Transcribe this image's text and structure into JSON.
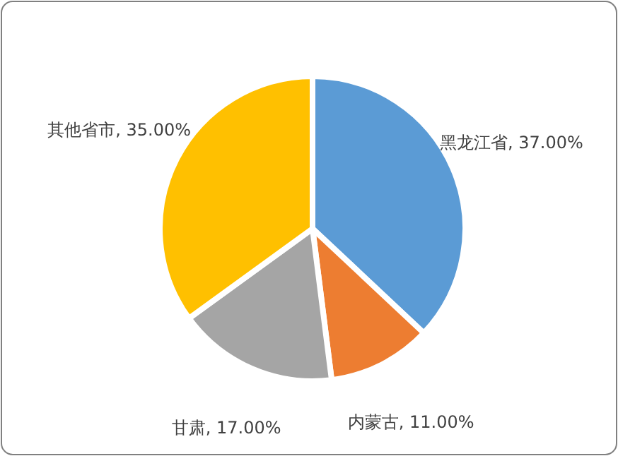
{
  "chart_data": {
    "type": "pie",
    "categories": [
      "黑龙江省",
      "内蒙古",
      "甘肃",
      "其他省市"
    ],
    "values": [
      37,
      11,
      17,
      35
    ],
    "value_labels": [
      "37.00%",
      "11.00%",
      "17.00%",
      "35.00%"
    ],
    "colors": [
      "#5b9bd5",
      "#ed7d31",
      "#a5a5a5",
      "#ffc000"
    ]
  }
}
